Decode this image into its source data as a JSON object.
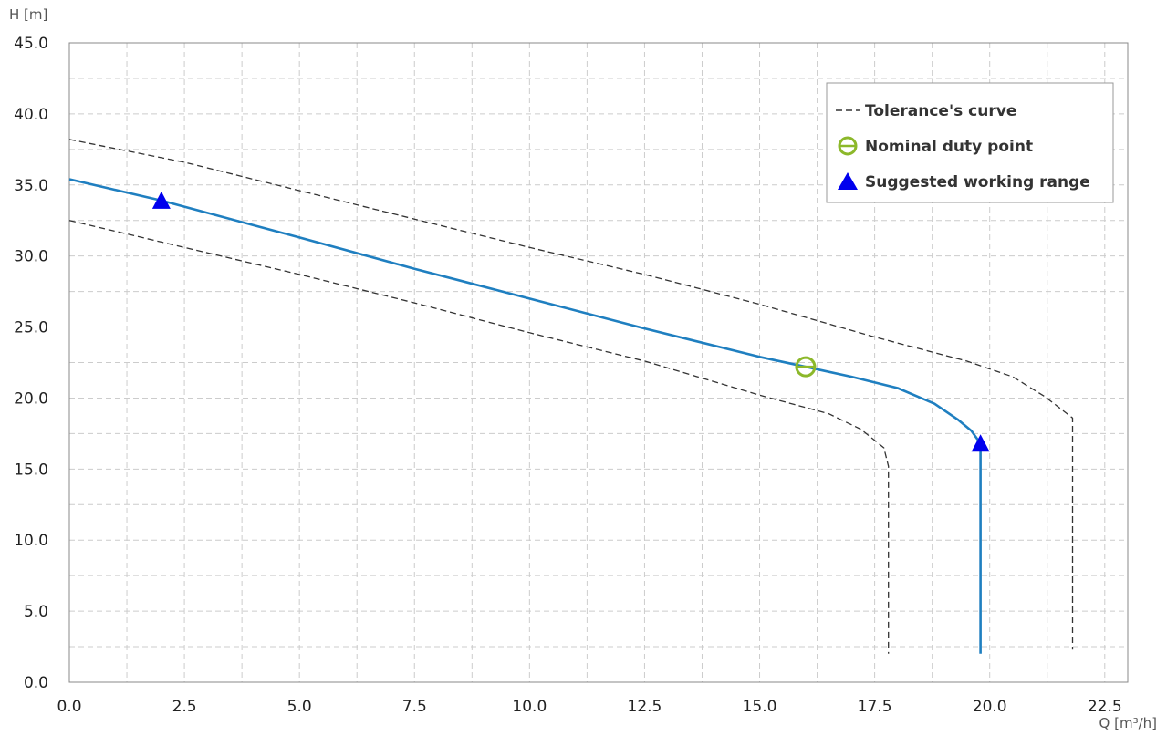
{
  "chart_data": {
    "type": "line",
    "xlabel": "Q [m³/h]",
    "ylabel": "H [m]",
    "xlim": [
      0,
      23
    ],
    "ylim": [
      0,
      45
    ],
    "x_ticks": [
      0,
      2.5,
      5,
      7.5,
      10,
      12.5,
      15,
      17.5,
      20,
      22.5
    ],
    "x_tick_labels": [
      "0.0",
      "2.5",
      "5.0",
      "7.5",
      "10.0",
      "12.5",
      "15.0",
      "17.5",
      "20.0",
      "22.5"
    ],
    "y_ticks": [
      0,
      5,
      10,
      15,
      20,
      25,
      30,
      35,
      40,
      45
    ],
    "y_tick_labels": [
      "0.0",
      "5.0",
      "10.0",
      "15.0",
      "20.0",
      "25.0",
      "30.0",
      "35.0",
      "40.0",
      "45.0"
    ],
    "grid": true,
    "legend_position": "top-right",
    "series": [
      {
        "style": "solid",
        "color": "#1f7fc0",
        "points": [
          [
            0,
            35.4
          ],
          [
            2,
            33.9
          ],
          [
            5,
            31.3
          ],
          [
            7.5,
            29.1
          ],
          [
            10,
            27.0
          ],
          [
            12.5,
            24.9
          ],
          [
            15,
            22.9
          ],
          [
            16,
            22.2
          ],
          [
            17,
            21.5
          ],
          [
            18,
            20.7
          ],
          [
            18.8,
            19.6
          ],
          [
            19.3,
            18.5
          ],
          [
            19.6,
            17.7
          ],
          [
            19.8,
            16.8
          ],
          [
            19.8,
            2.0
          ]
        ]
      },
      {
        "name": "Tolerance's curve",
        "style": "dashed",
        "color": "#333333",
        "points": [
          [
            0,
            38.2
          ],
          [
            2.5,
            36.6
          ],
          [
            5,
            34.6
          ],
          [
            7.5,
            32.6
          ],
          [
            10,
            30.6
          ],
          [
            12.5,
            28.7
          ],
          [
            15,
            26.6
          ],
          [
            17.5,
            24.3
          ],
          [
            19.5,
            22.6
          ],
          [
            20.5,
            21.5
          ],
          [
            21.2,
            20.1
          ],
          [
            21.8,
            18.6
          ],
          [
            21.8,
            2.3
          ]
        ]
      },
      {
        "style": "dashed",
        "color": "#333333",
        "points": [
          [
            0,
            32.5
          ],
          [
            2.5,
            30.6
          ],
          [
            5,
            28.7
          ],
          [
            7.5,
            26.7
          ],
          [
            10,
            24.6
          ],
          [
            12.5,
            22.6
          ],
          [
            15,
            20.2
          ],
          [
            16.5,
            18.9
          ],
          [
            17.2,
            17.8
          ],
          [
            17.7,
            16.5
          ],
          [
            17.8,
            15.2
          ],
          [
            17.8,
            2.0
          ]
        ]
      }
    ],
    "markers": [
      {
        "name": "Nominal duty point",
        "shape": "circle",
        "color": "#8cb82a",
        "points": [
          [
            16.0,
            22.2
          ]
        ]
      },
      {
        "name": "Suggested working range",
        "shape": "triangle",
        "color": "#0000ee",
        "points": [
          [
            2.0,
            33.9
          ],
          [
            19.8,
            16.8
          ]
        ]
      }
    ],
    "legend": [
      {
        "label": "Tolerance's curve",
        "symbol": "dashed-line"
      },
      {
        "label": "Nominal duty point",
        "symbol": "circle"
      },
      {
        "label": "Suggested working range",
        "symbol": "triangle"
      }
    ]
  }
}
